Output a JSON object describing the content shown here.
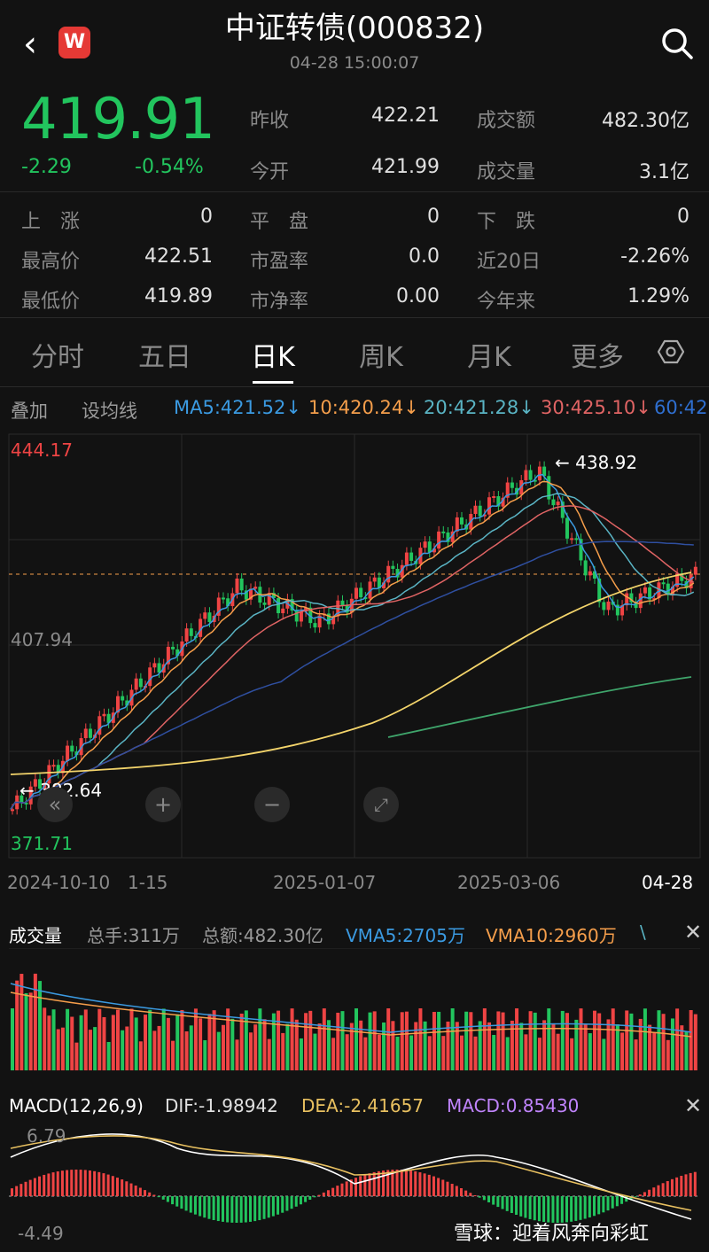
{
  "header": {
    "back_icon": "chevron-left-icon",
    "title": "中证转债(000832)",
    "time": "04-28 15:00:07",
    "app_logo": "W"
  },
  "quote": {
    "price": "419.91",
    "change": "-2.29",
    "change_pct": "-0.54%"
  },
  "stats": {
    "prev_close_label": "昨收",
    "prev_close": "422.21",
    "turnover_label": "成交额",
    "turnover": "482.30亿",
    "open_label": "今开",
    "open": "421.99",
    "volume_label": "成交量",
    "volume": "3.1亿",
    "up_label": "上　涨",
    "up": "0",
    "flat_label": "平　盘",
    "flat": "0",
    "down_label": "下　跌",
    "down": "0",
    "high_label": "最高价",
    "high": "422.51",
    "pe_label": "市盈率",
    "pe": "0.0",
    "d20_label": "近20日",
    "d20": "-2.26%",
    "low_label": "最低价",
    "low": "419.89",
    "pb_label": "市净率",
    "pb": "0.00",
    "ytd_label": "今年来",
    "ytd": "1.29%"
  },
  "tabs": [
    "分时",
    "五日",
    "日K",
    "周K",
    "月K",
    "更多"
  ],
  "active_tab": "日K",
  "chart_toolbar": {
    "overlay": "叠加",
    "set_ma": "设均线",
    "ma5": "MA5:421.52↓",
    "ma10": "10:420.24↓",
    "ma20": "20:421.28↓",
    "ma30": "30:425.10↓",
    "ma60": "60:42"
  },
  "kline": {
    "top_price": "444.17",
    "mid_price": "407.94",
    "bottom_price": "371.71",
    "max_mark": "← 438.92",
    "min_mark": "← 382.64",
    "dates": [
      "2024-10-10",
      "1-15",
      "2025-01-07",
      "2025-03-06",
      "04-28"
    ]
  },
  "volume_panel": {
    "title": "成交量",
    "total_hands": "总手:311万",
    "total_amount": "总额:482.30亿",
    "vma5": "VMA5:2705万",
    "vma10": "VMA10:2960万",
    "more": "\\"
  },
  "macd_panel": {
    "title": "MACD(12,26,9)",
    "dif": "DIF:-1.98942",
    "dea": "DEA:-2.41657",
    "macd": "MACD:0.85430",
    "top": "6.79",
    "bottom": "-4.49"
  },
  "watermark": "雪球：迎着风奔向彩虹",
  "colors": {
    "up": "#ef4444",
    "down": "#22c55e",
    "ma5": "#3b9ae1",
    "ma10": "#f59e4b",
    "ma20": "#5ab4c4",
    "ma30": "#e06464",
    "ma60": "#2f4fa0"
  }
}
